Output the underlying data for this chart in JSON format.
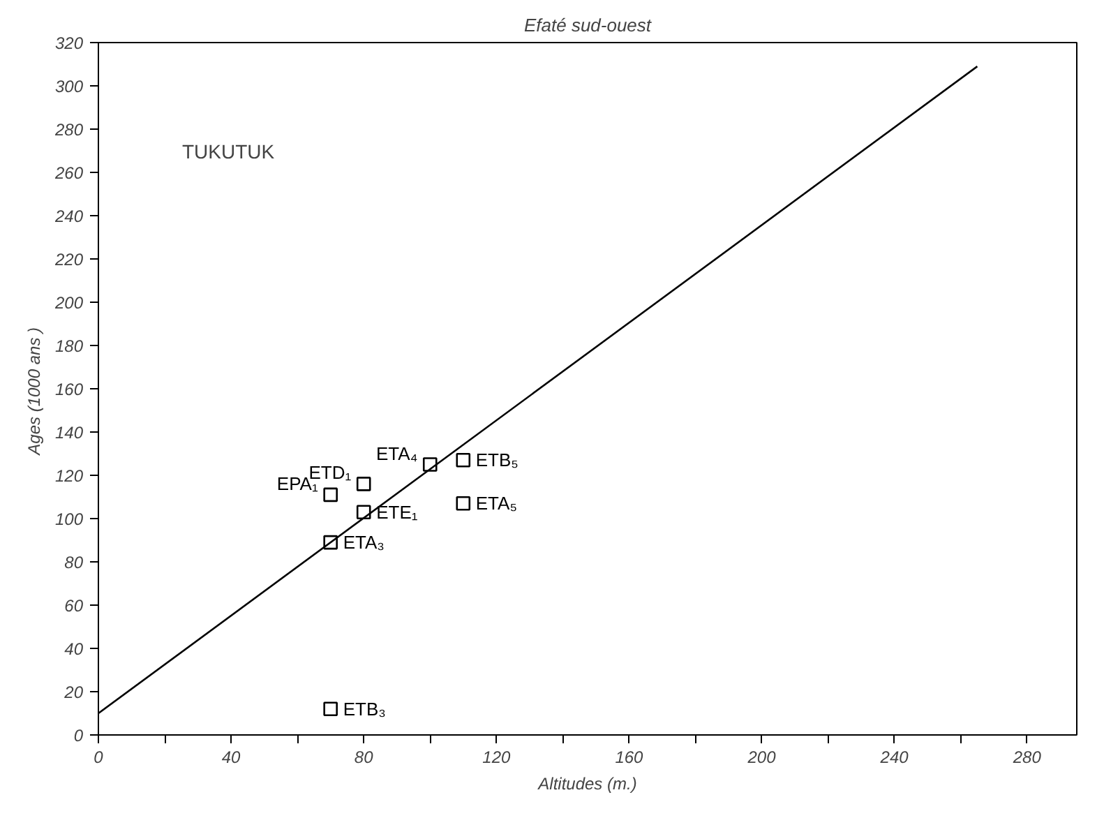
{
  "chart_data": {
    "type": "scatter",
    "title": "Efaté sud-ouest",
    "xlabel": "Altitudes (m.)",
    "ylabel": "Ages  (1000 ans )",
    "annotations": [
      "TUKUTUK"
    ],
    "marker": "square",
    "grid": false,
    "xlim": [
      0,
      295
    ],
    "ylim": [
      0,
      320
    ],
    "xticks": [
      0,
      {
        "value": 20,
        "label": null
      },
      40,
      {
        "value": 60,
        "label": null
      },
      80,
      {
        "value": 100,
        "label": null
      },
      120,
      {
        "value": 140,
        "label": null
      },
      160,
      {
        "value": 180,
        "label": null
      },
      200,
      {
        "value": 220,
        "label": null
      },
      240,
      {
        "value": 260,
        "label": null
      },
      280
    ],
    "yticks": [
      0,
      20,
      40,
      60,
      80,
      100,
      120,
      140,
      160,
      180,
      200,
      220,
      240,
      260,
      280,
      300,
      320
    ],
    "series": [
      {
        "name": "EPA₁",
        "color": "#000000",
        "x": [
          70
        ],
        "values": [
          111
        ]
      },
      {
        "name": "ETD₁",
        "color": "#000000",
        "x": [
          80
        ],
        "values": [
          116
        ]
      },
      {
        "name": "ETE₁",
        "color": "#000000",
        "x": [
          80
        ],
        "values": [
          103
        ]
      },
      {
        "name": "ETA₃",
        "color": "#000000",
        "x": [
          70
        ],
        "values": [
          89
        ]
      },
      {
        "name": "ETA₄",
        "color": "#000000",
        "x": [
          100
        ],
        "values": [
          125
        ]
      },
      {
        "name": "ETB₅",
        "color": "#000000",
        "x": [
          110
        ],
        "values": [
          127
        ]
      },
      {
        "name": "ETA₅",
        "color": "#000000",
        "x": [
          110
        ],
        "values": [
          107
        ]
      },
      {
        "name": "ETB₃",
        "color": "#000000",
        "x": [
          70
        ],
        "values": [
          12
        ]
      },
      {
        "type": "line",
        "color": "#000000",
        "x": [
          0,
          265
        ],
        "values": [
          10,
          309
        ],
        "line_style": "solid",
        "marker": "none"
      }
    ]
  }
}
